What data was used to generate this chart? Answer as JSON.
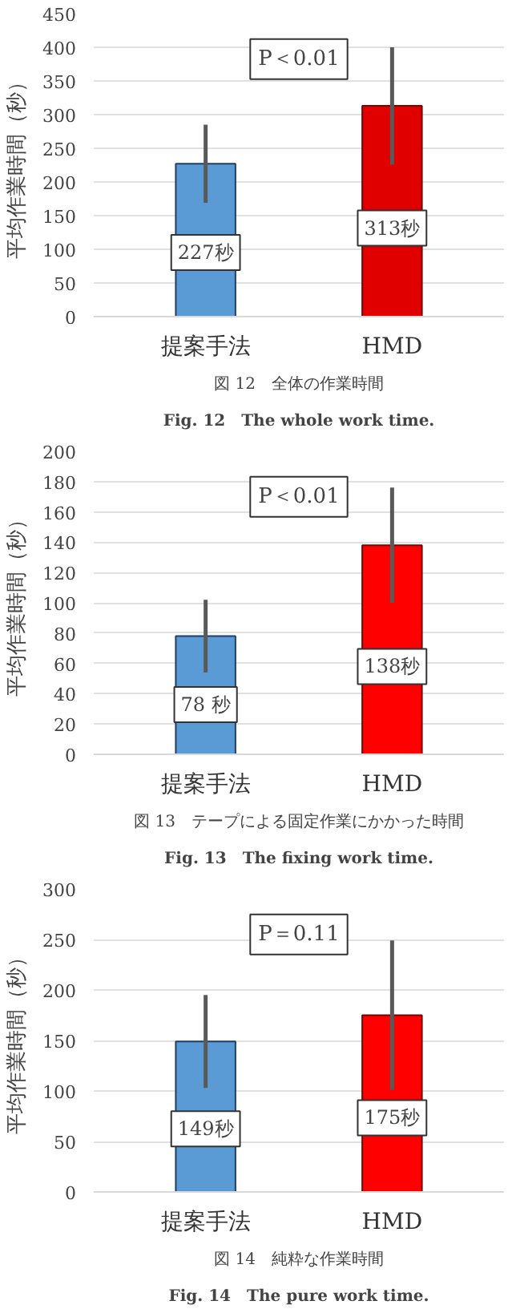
{
  "chart_data": [
    {
      "type": "bar",
      "ylabel": "平均作業時間（秒）",
      "categories": [
        "提案手法",
        "HMD"
      ],
      "values": [
        227,
        313
      ],
      "colors": [
        "#5b9bd5",
        "#e00000"
      ],
      "errors": [
        58,
        87
      ],
      "value_labels": [
        "227秒",
        "313秒"
      ],
      "ylim": [
        0,
        450
      ],
      "yticks": [
        0,
        50,
        100,
        150,
        200,
        250,
        300,
        350,
        400,
        450
      ],
      "grid": "y",
      "annotations": [
        "P＜0.01",
        "図 12　全体の作業時間",
        "Fig. 12　The whole work time."
      ]
    },
    {
      "type": "bar",
      "ylabel": "平均作業時間（秒）",
      "categories": [
        "提案手法",
        "HMD"
      ],
      "values": [
        78,
        138
      ],
      "colors": [
        "#5b9bd5",
        "#ff0000"
      ],
      "errors": [
        24,
        38
      ],
      "value_labels": [
        "78 秒",
        "138秒"
      ],
      "ylim": [
        0,
        200
      ],
      "yticks": [
        0,
        20,
        40,
        60,
        80,
        100,
        120,
        140,
        160,
        180,
        200
      ],
      "grid": "y",
      "annotations": [
        "P＜0.01",
        "図 13　テープによる固定作業にかかった時間",
        "Fig. 13　The fixing work time."
      ]
    },
    {
      "type": "bar",
      "ylabel": "平均作業時間（秒）",
      "categories": [
        "提案手法",
        "HMD"
      ],
      "values": [
        149,
        175
      ],
      "colors": [
        "#5b9bd5",
        "#ff0000"
      ],
      "errors": [
        46,
        74
      ],
      "value_labels": [
        "149秒",
        "175秒"
      ],
      "ylim": [
        0,
        300
      ],
      "yticks": [
        0,
        50,
        100,
        150,
        200,
        250,
        300
      ],
      "grid": "y",
      "annotations": [
        "P＝0.11",
        "図 14　純粋な作業時間",
        "Fig. 14　The pure work time."
      ]
    }
  ]
}
